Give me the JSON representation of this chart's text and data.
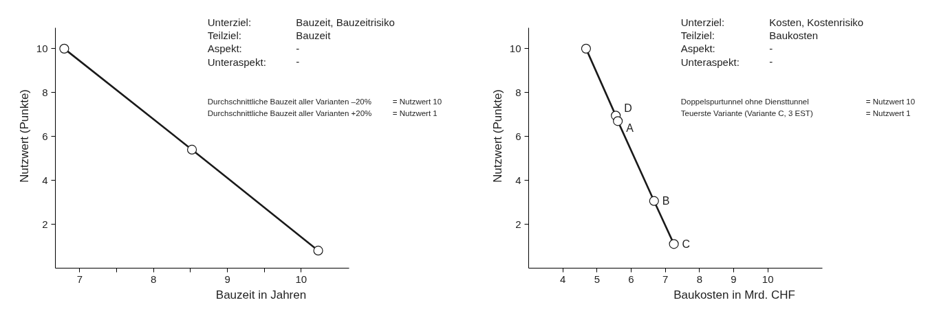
{
  "chart_data": [
    {
      "type": "line",
      "xlabel": "Bauzeit in Jahren",
      "ylabel": "Nutzwert (Punkte)",
      "marker": "circle",
      "line_style": "solid",
      "grid": false,
      "x": [
        6.79,
        8.52,
        10.23
      ],
      "series": [
        {
          "color": "#1a1a1a",
          "values": [
            10,
            5.4,
            0.8
          ]
        }
      ],
      "xlim": [
        6.67,
        10.65
      ],
      "ylim": [
        0,
        10.95
      ],
      "xticks": [
        7,
        {
          "value": 7.5,
          "label": null
        },
        8,
        {
          "value": 8.5,
          "label": null
        },
        9,
        {
          "value": 9.5,
          "label": null
        },
        10
      ],
      "yticks": [
        2,
        4,
        6,
        8,
        10
      ],
      "annotations": [
        "Unterziel:",
        "Bauzeit, Bauzeitrisiko",
        "Teilziel:",
        "Bauzeit",
        "Aspekt:",
        "-",
        "Unteraspekt:",
        "-",
        "Durchschnittliche Bauzeit aller Varianten  –20%",
        "= Nutzwert 10",
        "Durchschnittliche Bauzeit aller Varianten  +20%",
        "= Nutzwert  1"
      ]
    },
    {
      "type": "line",
      "xlabel": "Baukosten in Mrd. CHF",
      "ylabel": "Nutzwert (Punkte)",
      "marker": "circle",
      "line_style": "solid",
      "grid": false,
      "x": [
        4.68,
        5.55,
        5.61,
        6.67,
        7.25
      ],
      "series": [
        {
          "color": "#1a1a1a",
          "values": [
            10,
            6.95,
            6.7,
            3.06,
            1.1
          ]
        }
      ],
      "xlim": [
        3,
        11.6
      ],
      "ylim": [
        0,
        10.95
      ],
      "xticks": [
        4,
        5,
        6,
        7,
        8,
        9,
        10
      ],
      "yticks": [
        2,
        4,
        6,
        8,
        10
      ],
      "annotations": [
        "Unterziel:",
        "Kosten, Kostenrisiko",
        "Teilziel:",
        "Baukosten",
        "Aspekt:",
        "-",
        "Unteraspekt:",
        "-",
        "Doppelspurtunnel ohne Diensttunnel",
        "= Nutzwert 10",
        "Teuerste Variante (Variante C, 3 EST)",
        "= Nutzwert  1",
        {
          "text": "D",
          "x": 5.55,
          "y": 6.95
        },
        {
          "text": "A",
          "x": 5.61,
          "y": 6.7
        },
        {
          "text": "B",
          "x": 6.67,
          "y": 3.06
        },
        {
          "text": "C",
          "x": 7.25,
          "y": 1.1
        }
      ]
    }
  ]
}
